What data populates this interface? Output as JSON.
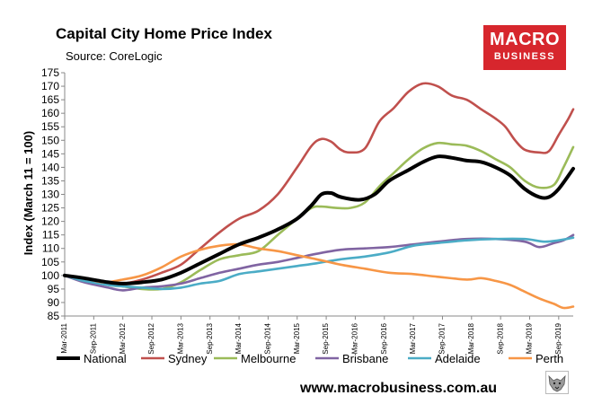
{
  "logo": {
    "line1": "MACRO",
    "line2": "BUSINESS",
    "color": "#d7262d"
  },
  "footer": {
    "website": "www.macrobusiness.com.au"
  },
  "chart_data": {
    "type": "line",
    "title": "Capital City Home Price Index",
    "subtitle": "Source: CoreLogic",
    "ylabel": "Index (March 11 = 100)",
    "xlabel": "",
    "ylim": [
      85,
      175
    ],
    "yticks": [
      85,
      90,
      95,
      100,
      105,
      110,
      115,
      120,
      125,
      130,
      135,
      140,
      145,
      150,
      155,
      160,
      165,
      170,
      175
    ],
    "x_start": 2011.167,
    "x_end": 2019.917,
    "xticks": [
      {
        "label": "Mar-2011",
        "x": 2011.167
      },
      {
        "label": "Sep-2011",
        "x": 2011.667
      },
      {
        "label": "Mar-2012",
        "x": 2012.167
      },
      {
        "label": "Sep-2012",
        "x": 2012.667
      },
      {
        "label": "Mar-2013",
        "x": 2013.167
      },
      {
        "label": "Sep-2013",
        "x": 2013.667
      },
      {
        "label": "Mar-2014",
        "x": 2014.167
      },
      {
        "label": "Sep-2014",
        "x": 2014.667
      },
      {
        "label": "Mar-2015",
        "x": 2015.167
      },
      {
        "label": "Sep-2015",
        "x": 2015.667
      },
      {
        "label": "Mar-2016",
        "x": 2016.167
      },
      {
        "label": "Sep-2016",
        "x": 2016.667
      },
      {
        "label": "Mar-2017",
        "x": 2017.167
      },
      {
        "label": "Sep-2017",
        "x": 2017.667
      },
      {
        "label": "Mar-2018",
        "x": 2018.167
      },
      {
        "label": "Sep-2018",
        "x": 2018.667
      },
      {
        "label": "Mar-2019",
        "x": 2019.167
      },
      {
        "label": "Sep-2019",
        "x": 2019.667
      }
    ],
    "series": [
      {
        "name": "Sydney",
        "color": "#c0504d",
        "width": 2.6,
        "points": [
          [
            2011.167,
            100
          ],
          [
            2011.5,
            99
          ],
          [
            2011.917,
            97.5
          ],
          [
            2012.167,
            97
          ],
          [
            2012.5,
            98.5
          ],
          [
            2012.833,
            101
          ],
          [
            2013.167,
            104
          ],
          [
            2013.5,
            110
          ],
          [
            2013.833,
            116
          ],
          [
            2014.167,
            121
          ],
          [
            2014.5,
            124
          ],
          [
            2014.833,
            130
          ],
          [
            2015.167,
            140
          ],
          [
            2015.417,
            148
          ],
          [
            2015.583,
            150.5
          ],
          [
            2015.75,
            149.5
          ],
          [
            2015.917,
            146.5
          ],
          [
            2016.083,
            145.5
          ],
          [
            2016.333,
            147
          ],
          [
            2016.583,
            157
          ],
          [
            2016.833,
            162
          ],
          [
            2017.083,
            168
          ],
          [
            2017.333,
            171
          ],
          [
            2017.583,
            170
          ],
          [
            2017.833,
            166.5
          ],
          [
            2018.083,
            165
          ],
          [
            2018.333,
            161.5
          ],
          [
            2018.583,
            158
          ],
          [
            2018.75,
            155
          ],
          [
            2018.917,
            150
          ],
          [
            2019.083,
            146.5
          ],
          [
            2019.333,
            145.5
          ],
          [
            2019.5,
            146
          ],
          [
            2019.667,
            152
          ],
          [
            2019.833,
            158
          ],
          [
            2019.917,
            161.5
          ]
        ]
      },
      {
        "name": "Melbourne",
        "color": "#9bbb59",
        "width": 2.6,
        "points": [
          [
            2011.167,
            100
          ],
          [
            2011.5,
            99
          ],
          [
            2011.917,
            96.5
          ],
          [
            2012.167,
            96
          ],
          [
            2012.5,
            95
          ],
          [
            2012.833,
            95
          ],
          [
            2013.167,
            97.5
          ],
          [
            2013.5,
            102
          ],
          [
            2013.833,
            106
          ],
          [
            2014.167,
            107.5
          ],
          [
            2014.5,
            109
          ],
          [
            2014.833,
            115
          ],
          [
            2015.167,
            121
          ],
          [
            2015.417,
            125
          ],
          [
            2015.583,
            125.5
          ],
          [
            2015.833,
            125
          ],
          [
            2016.083,
            125
          ],
          [
            2016.333,
            127
          ],
          [
            2016.583,
            133
          ],
          [
            2016.833,
            138
          ],
          [
            2017.083,
            143
          ],
          [
            2017.333,
            147
          ],
          [
            2017.583,
            149
          ],
          [
            2017.833,
            148.5
          ],
          [
            2018.083,
            148
          ],
          [
            2018.333,
            146
          ],
          [
            2018.583,
            143
          ],
          [
            2018.833,
            140
          ],
          [
            2019.083,
            135
          ],
          [
            2019.333,
            132.5
          ],
          [
            2019.583,
            133.5
          ],
          [
            2019.75,
            140
          ],
          [
            2019.917,
            147.5
          ]
        ]
      },
      {
        "name": "Brisbane",
        "color": "#8064a2",
        "width": 2.6,
        "points": [
          [
            2011.167,
            100
          ],
          [
            2011.5,
            97.5
          ],
          [
            2011.917,
            95.5
          ],
          [
            2012.167,
            94.5
          ],
          [
            2012.5,
            95.5
          ],
          [
            2012.833,
            96
          ],
          [
            2013.167,
            97
          ],
          [
            2013.5,
            99
          ],
          [
            2013.833,
            101
          ],
          [
            2014.167,
            102.5
          ],
          [
            2014.5,
            104
          ],
          [
            2014.833,
            105
          ],
          [
            2015.167,
            106.5
          ],
          [
            2015.5,
            108
          ],
          [
            2015.917,
            109.5
          ],
          [
            2016.333,
            110
          ],
          [
            2016.75,
            110.5
          ],
          [
            2017.167,
            111.5
          ],
          [
            2017.583,
            112.5
          ],
          [
            2018.083,
            113.5
          ],
          [
            2018.583,
            113.5
          ],
          [
            2019.083,
            112.5
          ],
          [
            2019.333,
            110.5
          ],
          [
            2019.583,
            112
          ],
          [
            2019.75,
            113
          ],
          [
            2019.917,
            115
          ]
        ]
      },
      {
        "name": "Adelaide",
        "color": "#4bacc6",
        "width": 2.6,
        "points": [
          [
            2011.167,
            100
          ],
          [
            2011.5,
            98
          ],
          [
            2011.917,
            96.5
          ],
          [
            2012.167,
            96
          ],
          [
            2012.5,
            95.5
          ],
          [
            2012.833,
            95
          ],
          [
            2013.167,
            95.5
          ],
          [
            2013.5,
            97
          ],
          [
            2013.833,
            98
          ],
          [
            2014.167,
            100.5
          ],
          [
            2014.5,
            101.5
          ],
          [
            2014.833,
            102.5
          ],
          [
            2015.167,
            103.5
          ],
          [
            2015.5,
            104.5
          ],
          [
            2015.917,
            106
          ],
          [
            2016.333,
            107
          ],
          [
            2016.75,
            108.5
          ],
          [
            2017.167,
            111
          ],
          [
            2017.583,
            112
          ],
          [
            2018.083,
            113
          ],
          [
            2018.583,
            113.5
          ],
          [
            2019.083,
            113.5
          ],
          [
            2019.417,
            112.5
          ],
          [
            2019.667,
            113
          ],
          [
            2019.917,
            114
          ]
        ]
      },
      {
        "name": "Perth",
        "color": "#f79646",
        "width": 2.6,
        "points": [
          [
            2011.167,
            100
          ],
          [
            2011.5,
            99
          ],
          [
            2011.833,
            97.5
          ],
          [
            2012.167,
            98.5
          ],
          [
            2012.5,
            100
          ],
          [
            2012.833,
            103
          ],
          [
            2013.167,
            107
          ],
          [
            2013.5,
            109.5
          ],
          [
            2013.833,
            111
          ],
          [
            2014.167,
            111.5
          ],
          [
            2014.5,
            110
          ],
          [
            2014.833,
            109
          ],
          [
            2015.167,
            107.5
          ],
          [
            2015.5,
            106
          ],
          [
            2015.917,
            104
          ],
          [
            2016.333,
            102.5
          ],
          [
            2016.75,
            101
          ],
          [
            2017.167,
            100.5
          ],
          [
            2017.583,
            99.5
          ],
          [
            2018.083,
            98.5
          ],
          [
            2018.333,
            99
          ],
          [
            2018.583,
            98
          ],
          [
            2018.833,
            96.5
          ],
          [
            2019.083,
            94
          ],
          [
            2019.333,
            91.5
          ],
          [
            2019.583,
            89.5
          ],
          [
            2019.75,
            88
          ],
          [
            2019.917,
            88.5
          ]
        ]
      },
      {
        "name": "National",
        "color": "#000000",
        "width": 4,
        "points": [
          [
            2011.167,
            100
          ],
          [
            2011.5,
            99
          ],
          [
            2011.917,
            97.5
          ],
          [
            2012.167,
            97
          ],
          [
            2012.5,
            97.5
          ],
          [
            2012.833,
            98.5
          ],
          [
            2013.167,
            101
          ],
          [
            2013.5,
            104.5
          ],
          [
            2013.833,
            108
          ],
          [
            2014.167,
            111.5
          ],
          [
            2014.5,
            114
          ],
          [
            2014.833,
            117
          ],
          [
            2015.167,
            121
          ],
          [
            2015.417,
            126
          ],
          [
            2015.583,
            130
          ],
          [
            2015.75,
            130.5
          ],
          [
            2015.917,
            129
          ],
          [
            2016.25,
            128
          ],
          [
            2016.5,
            130
          ],
          [
            2016.75,
            135
          ],
          [
            2017.083,
            139
          ],
          [
            2017.333,
            142
          ],
          [
            2017.583,
            144
          ],
          [
            2017.833,
            143.5
          ],
          [
            2018.083,
            142.5
          ],
          [
            2018.333,
            142
          ],
          [
            2018.583,
            140
          ],
          [
            2018.833,
            137
          ],
          [
            2019.083,
            132
          ],
          [
            2019.333,
            129
          ],
          [
            2019.5,
            129
          ],
          [
            2019.667,
            132
          ],
          [
            2019.917,
            139.5
          ]
        ]
      }
    ],
    "legend": {
      "placement": "bottom",
      "order": [
        "National",
        "Sydney",
        "Melbourne",
        "Brisbane",
        "Adelaide",
        "Perth"
      ]
    }
  }
}
